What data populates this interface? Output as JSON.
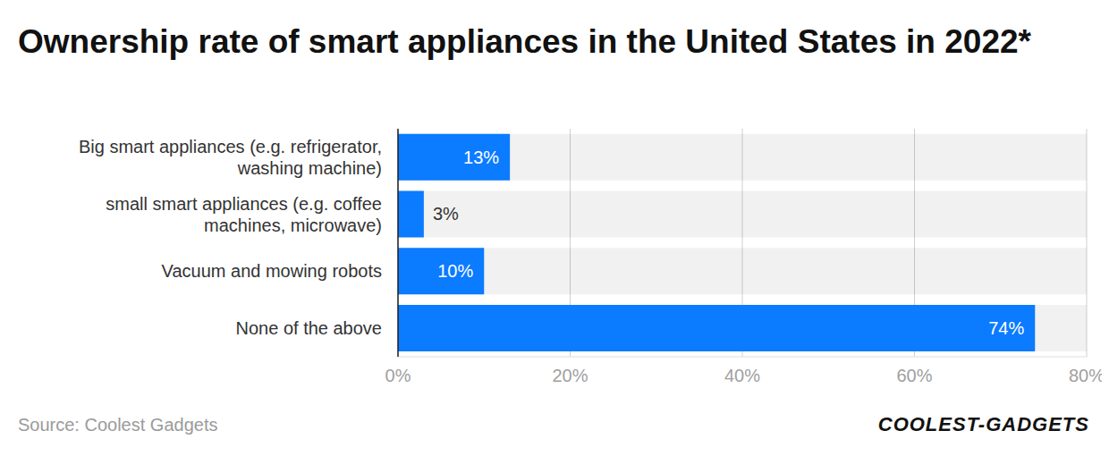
{
  "chart_data": {
    "type": "bar",
    "orientation": "horizontal",
    "title": "Ownership rate of smart appliances in the United States in 2022*",
    "categories": [
      "Big smart appliances (e.g. refrigerator, washing machine)",
      "small smart appliances (e.g. coffee machines, microwave)",
      "Vacuum and mowing robots",
      "None of the above"
    ],
    "values": [
      13,
      3,
      10,
      74
    ],
    "value_labels": [
      "13%",
      "3%",
      "10%",
      "74%"
    ],
    "data_labels": true,
    "color": "#0b7bff",
    "xlim": [
      0,
      80
    ],
    "xticks": [
      {
        "value": 0,
        "label": "0%"
      },
      {
        "value": 20,
        "label": "20%"
      },
      {
        "value": 40,
        "label": "40%"
      },
      {
        "value": 60,
        "label": "60%"
      },
      {
        "value": 80,
        "label": "80%"
      }
    ],
    "grid": true,
    "source": "Source: Coolest Gadgets",
    "watermark": "COOLEST-GADGETS"
  }
}
